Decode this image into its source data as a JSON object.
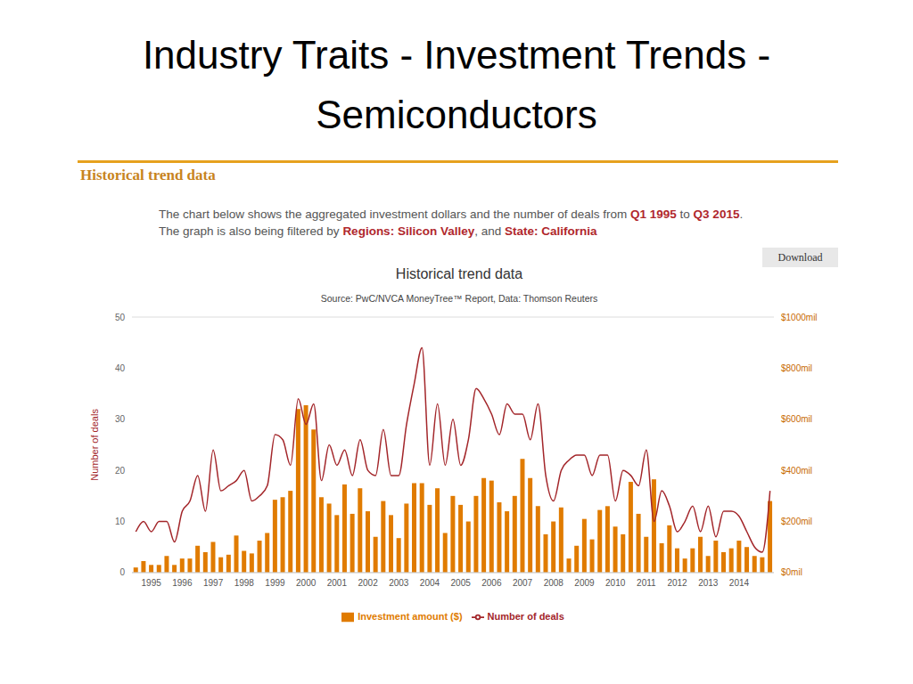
{
  "slide_title": "Industry Traits - Investment Trends - Semiconductors",
  "section_title": "Historical trend data",
  "description": [
    [
      {
        "text": "The chart below shows the aggregated investment dollars and the number of deals from ",
        "highlight": false
      },
      {
        "text": "Q1 1995",
        "highlight": true
      },
      {
        "text": " to ",
        "highlight": false
      },
      {
        "text": "Q3 2015",
        "highlight": true
      },
      {
        "text": ".",
        "highlight": false
      }
    ],
    [
      {
        "text": "The graph is also being filtered by ",
        "highlight": false
      },
      {
        "text": "Regions:",
        "highlight": true
      },
      {
        "text": " Silicon Valley",
        "highlight": true
      },
      {
        "text": ", and ",
        "highlight": false
      },
      {
        "text": "State:",
        "highlight": true
      },
      {
        "text": " California",
        "highlight": true
      }
    ]
  ],
  "button": "Download",
  "chart_data": {
    "type": "bar",
    "title": "Historical trend data",
    "subtitle": "Source: PwC/NVCA MoneyTree™ Report, Data: Thomson Reuters",
    "y_label": "Number of deals",
    "grid": true,
    "legend": "bottom",
    "categories": [
      null,
      null,
      "1995",
      null,
      null,
      null,
      "1996",
      null,
      null,
      null,
      "1997",
      null,
      null,
      null,
      "1998",
      null,
      null,
      null,
      "1999",
      null,
      null,
      null,
      "2000",
      null,
      null,
      null,
      "2001",
      null,
      null,
      null,
      "2002",
      null,
      null,
      null,
      "2003",
      null,
      null,
      null,
      "2004",
      null,
      null,
      null,
      "2005",
      null,
      null,
      null,
      "2006",
      null,
      null,
      null,
      "2007",
      null,
      null,
      null,
      "2008",
      null,
      null,
      null,
      "2009",
      null,
      null,
      null,
      "2010",
      null,
      null,
      null,
      "2011",
      null,
      null,
      null,
      "2012",
      null,
      null,
      null,
      "2013",
      null,
      null,
      null,
      "2014",
      null,
      null,
      null,
      null
    ],
    "ylim": [
      0,
      50
    ],
    "yticks": [
      0,
      10,
      20,
      30,
      40,
      50
    ],
    "y2lim": [
      0,
      1000
    ],
    "y2ticks": [
      {
        "value": 0,
        "label": "$0mil"
      },
      {
        "value": 200,
        "label": "$200mil"
      },
      {
        "value": 400,
        "label": "$400mil"
      },
      {
        "value": 600,
        "label": "$600mil"
      },
      {
        "value": 800,
        "label": "$800mil"
      },
      {
        "value": 1000,
        "label": "$1000mil"
      }
    ],
    "series": [
      {
        "name": "Investment amount ($)",
        "type": "bar",
        "axis": "y2",
        "color": "#e07b00",
        "values": [
          20,
          45,
          30,
          30,
          65,
          30,
          55,
          55,
          105,
          80,
          120,
          60,
          70,
          145,
          85,
          75,
          125,
          155,
          285,
          295,
          320,
          640,
          655,
          560,
          295,
          270,
          225,
          345,
          230,
          330,
          240,
          140,
          280,
          225,
          135,
          270,
          350,
          350,
          265,
          330,
          155,
          300,
          265,
          200,
          300,
          370,
          360,
          275,
          240,
          300,
          445,
          370,
          260,
          150,
          200,
          255,
          55,
          105,
          210,
          130,
          245,
          260,
          180,
          150,
          355,
          230,
          140,
          365,
          115,
          185,
          95,
          55,
          95,
          140,
          65,
          125,
          80,
          95,
          125,
          100,
          65,
          60,
          280
        ]
      },
      {
        "name": "Number of deals",
        "type": "line",
        "color": "#a3262a",
        "values": [
          8,
          10,
          8,
          10,
          10,
          6,
          12,
          14,
          19,
          12,
          24,
          16,
          17,
          18,
          20,
          14,
          15,
          17,
          27,
          26,
          21,
          34,
          29,
          33,
          18,
          25,
          21,
          24,
          19,
          26,
          20,
          19,
          28,
          19,
          19,
          29,
          37,
          44,
          21,
          33,
          21,
          30,
          21,
          26,
          36,
          34,
          31,
          27,
          33,
          31,
          31,
          26,
          33,
          19,
          14,
          20,
          22,
          23,
          23,
          19,
          23,
          23,
          14,
          20,
          19,
          17,
          24,
          10,
          16,
          13,
          8,
          10,
          13,
          8,
          13,
          7,
          12,
          12,
          11,
          8,
          5,
          4,
          16
        ]
      }
    ]
  }
}
